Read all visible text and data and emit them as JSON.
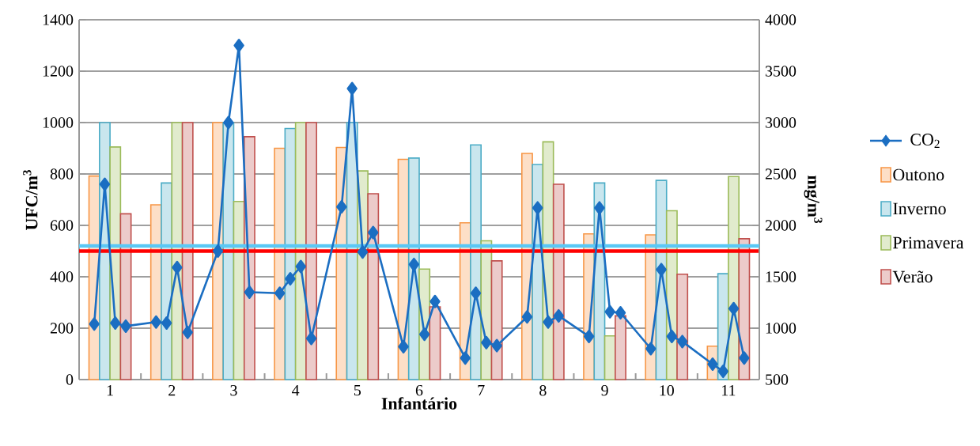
{
  "chart_data": {
    "type": "bar",
    "xlabel": "Infantário",
    "ylabel": "UFC/m$^{3}$",
    "y2label": "mg/m$^{3}$",
    "x": [
      1,
      2,
      3,
      4,
      5,
      6,
      7,
      8,
      9,
      10,
      11
    ],
    "series": [
      {
        "name": "CO$_{2}$",
        "type": "line",
        "axis": "y2",
        "color": "#1b6ec2",
        "x": [
          0.745,
          0.915,
          1.085,
          1.255,
          1.745,
          1.915,
          2.085,
          2.255,
          2.745,
          2.915,
          3.085,
          3.255,
          3.745,
          3.915,
          4.085,
          4.255,
          4.745,
          4.915,
          5.085,
          5.255,
          5.745,
          5.915,
          6.085,
          6.255,
          6.745,
          6.915,
          7.085,
          7.255,
          7.745,
          7.915,
          8.085,
          8.255,
          8.745,
          8.915,
          9.085,
          9.255,
          9.745,
          9.915,
          10.085,
          10.255,
          10.745,
          10.915,
          11.085,
          11.255
        ],
        "values": [
          1040,
          2400,
          1050,
          1020,
          1060,
          1050,
          1590,
          960,
          1750,
          3000,
          3750,
          1350,
          1340,
          1480,
          1600,
          900,
          2180,
          3330,
          1740,
          1930,
          820,
          1620,
          940,
          1260,
          710,
          1340,
          860,
          830,
          1110,
          2170,
          1060,
          1120,
          920,
          2170,
          1160,
          1150,
          800,
          1570,
          920,
          870,
          650,
          580,
          1190,
          710
        ]
      },
      {
        "name": "Outono",
        "color": "#f79646",
        "values": [
          792,
          680,
          1000,
          900,
          903,
          857,
          610,
          880,
          567,
          563,
          130
        ]
      },
      {
        "name": "Inverno",
        "color": "#4bacc6",
        "values": [
          1000,
          765,
          1000,
          977,
          1000,
          862,
          913,
          837,
          765,
          775,
          412
        ]
      },
      {
        "name": "Primavera",
        "color": "#9bbb59",
        "values": [
          905,
          1000,
          693,
          1000,
          812,
          430,
          540,
          925,
          170,
          657,
          790
        ]
      },
      {
        "name": "Verão",
        "color": "#c0504d",
        "values": [
          645,
          1000,
          945,
          1000,
          723,
          283,
          462,
          760,
          248,
          410,
          548
        ]
      }
    ],
    "xlim": [
      0.5,
      11.5
    ],
    "xticks": [
      1,
      2,
      3,
      4,
      5,
      6,
      7,
      8,
      9,
      10,
      11
    ],
    "ylim": [
      0,
      1400
    ],
    "yticks": [
      0,
      200,
      400,
      600,
      800,
      1000,
      1200,
      1400
    ],
    "y2lim": [
      500,
      4000
    ],
    "y2ticks": [
      500,
      1000,
      1500,
      2000,
      2500,
      3000,
      3500,
      4000
    ],
    "grid": "y",
    "legend": "right",
    "marker": "diamond",
    "line_style": "solid",
    "ref_lines": [
      {
        "axis": "y",
        "value": 500,
        "color": "#ff0000"
      },
      {
        "axis": "y2",
        "value": 1800,
        "color": "#5bc8f5"
      }
    ]
  }
}
